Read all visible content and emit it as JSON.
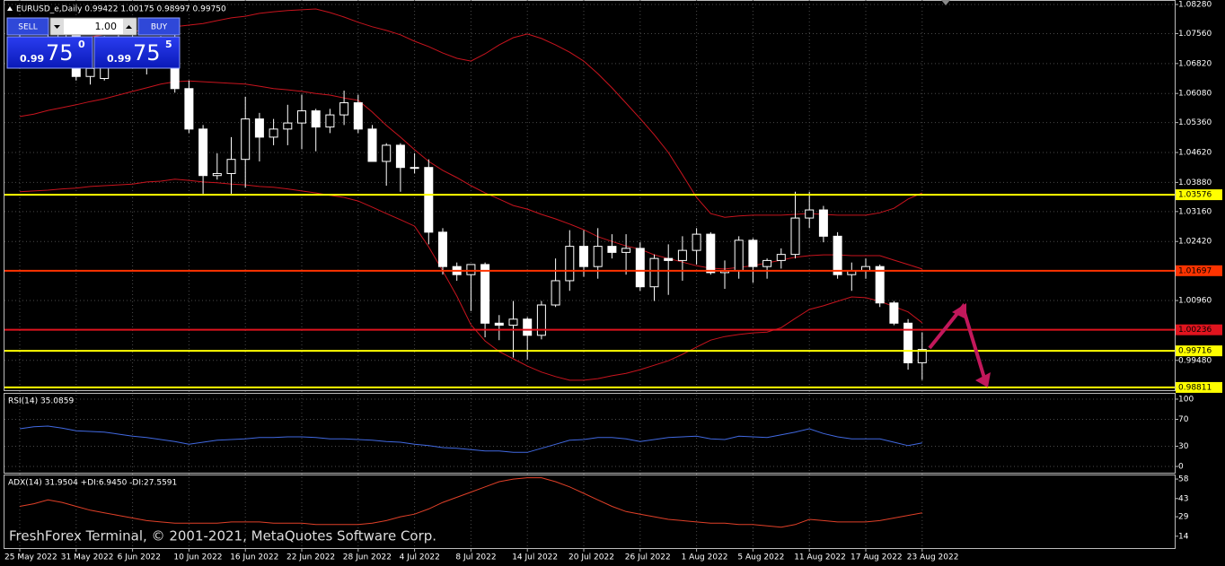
{
  "header": "EURUSD_e,Daily  0.99422 1.00175 0.98997 0.99750",
  "trade_panel": {
    "sell": "SELL",
    "lot": "1.00",
    "buy": "BUY",
    "bid": {
      "big": "0.99",
      "pips": "75",
      "frac": "0"
    },
    "ask": {
      "big": "0.99",
      "pips": "75",
      "frac": "5"
    }
  },
  "watermark": "FreshForex Terminal, © 2001-2021, MetaQuotes Software Corp.",
  "chart_data": [
    {
      "type": "candlestick",
      "categories": [
        "25 May 2022",
        null,
        null,
        null,
        "31 May 2022",
        null,
        null,
        null,
        "6 Jun 2022",
        null,
        null,
        null,
        "10 Jun 2022",
        null,
        null,
        null,
        "16 Jun 2022",
        null,
        null,
        null,
        "22 Jun 2022",
        null,
        null,
        null,
        "28 Jun 2022",
        null,
        null,
        null,
        "4 Jul 2022",
        null,
        null,
        null,
        "8 Jul 2022",
        null,
        null,
        null,
        "14 Jul 2022",
        null,
        null,
        null,
        "20 Jul 2022",
        null,
        null,
        null,
        "26 Jul 2022",
        null,
        null,
        null,
        "1 Aug 2022",
        null,
        null,
        null,
        "5 Aug 2022",
        null,
        null,
        null,
        "11 Aug 2022",
        null,
        null,
        null,
        "17 Aug 2022",
        null,
        null,
        null,
        "23 Aug 2022"
      ],
      "open": [
        1.0735,
        1.0725,
        1.073,
        1.0735,
        1.078,
        1.065,
        1.0645,
        1.0745,
        1.072,
        1.0695,
        1.0705,
        1.0715,
        1.062,
        1.052,
        1.0405,
        1.041,
        1.0445,
        1.0545,
        1.05,
        1.052,
        1.0535,
        1.0565,
        1.0525,
        1.0555,
        1.0585,
        1.052,
        1.044,
        1.048,
        1.0425,
        1.0425,
        1.0265,
        1.018,
        1.016,
        1.0185,
        1.004,
        1.0035,
        1.005,
        1.001,
        1.0085,
        1.0145,
        1.023,
        1.018,
        1.023,
        1.0215,
        1.0225,
        1.013,
        1.02,
        1.0195,
        1.022,
        1.026,
        1.0165,
        1.017,
        1.0245,
        1.018,
        1.0195,
        1.021,
        1.03,
        1.032,
        1.0255,
        1.016,
        1.017,
        1.018,
        1.009,
        1.004,
        0.99422
      ],
      "high": [
        1.0765,
        1.0745,
        1.0765,
        1.0785,
        1.0785,
        1.068,
        1.075,
        1.0765,
        1.0755,
        1.071,
        1.075,
        1.0775,
        1.064,
        1.053,
        1.046,
        1.05,
        1.06,
        1.056,
        1.0545,
        1.058,
        1.0605,
        1.057,
        1.057,
        1.0615,
        1.0605,
        1.053,
        1.0485,
        1.0485,
        1.046,
        1.0445,
        1.0275,
        1.019,
        1.0185,
        1.019,
        1.006,
        1.0095,
        1.0055,
        1.0095,
        1.02,
        1.027,
        1.027,
        1.0275,
        1.026,
        1.026,
        1.024,
        1.021,
        1.0235,
        1.0255,
        1.0275,
        1.0265,
        1.0195,
        1.0255,
        1.025,
        1.02,
        1.0225,
        1.0365,
        1.0365,
        1.033,
        1.0265,
        1.019,
        1.02,
        1.0185,
        1.0095,
        1.005,
        1.00175
      ],
      "low": [
        1.0695,
        1.069,
        1.071,
        1.072,
        1.064,
        1.063,
        1.064,
        1.0705,
        1.069,
        1.0655,
        1.068,
        1.061,
        1.051,
        1.036,
        1.0395,
        1.036,
        1.0375,
        1.044,
        1.048,
        1.048,
        1.047,
        1.0465,
        1.051,
        1.053,
        1.051,
        1.044,
        1.038,
        1.0365,
        1.041,
        1.0235,
        1.016,
        1.0145,
        1.007,
        1.0005,
        0.9998,
        0.9955,
        0.995,
        1.0,
        1.008,
        1.012,
        1.0155,
        1.015,
        1.02,
        1.016,
        1.012,
        1.0095,
        1.011,
        1.0145,
        1.0185,
        1.016,
        1.0125,
        1.015,
        1.014,
        1.015,
        1.0175,
        1.02,
        1.0275,
        1.024,
        1.015,
        1.012,
        1.015,
        1.008,
        1.0035,
        0.9925,
        0.98997
      ],
      "close": [
        1.0725,
        1.073,
        1.0735,
        1.078,
        1.065,
        1.067,
        1.0745,
        1.072,
        1.0695,
        1.0705,
        1.0715,
        1.062,
        1.052,
        1.0405,
        1.041,
        1.0445,
        1.0545,
        1.05,
        1.052,
        1.0535,
        1.0565,
        1.0525,
        1.0555,
        1.0585,
        1.052,
        1.044,
        1.048,
        1.0425,
        1.0425,
        1.0265,
        1.018,
        1.016,
        1.0185,
        1.004,
        1.0035,
        1.005,
        1.001,
        1.0085,
        1.0145,
        1.023,
        1.018,
        1.023,
        1.0215,
        1.0225,
        1.013,
        1.02,
        1.0195,
        1.022,
        1.026,
        1.0165,
        1.017,
        1.0245,
        1.018,
        1.0195,
        1.021,
        1.03,
        1.032,
        1.0255,
        1.016,
        1.017,
        1.018,
        1.009,
        1.004,
        0.9942,
        0.9975
      ],
      "bull_color": "#000000",
      "bear_color": "#ffffff",
      "wick_color": "#ffffff",
      "bands": [
        {
          "color": "#c8141e",
          "values": [
            1.0724,
            1.0728,
            1.0733,
            1.0737,
            1.0744,
            1.0748,
            1.0753,
            1.0757,
            1.0761,
            1.0766,
            1.0768,
            1.0773,
            1.0777,
            1.0781,
            1.0788,
            1.0795,
            1.0799,
            1.0806,
            1.081,
            1.0813,
            1.0815,
            1.0817,
            1.0808,
            1.0797,
            1.0784,
            1.0773,
            1.0764,
            1.0753,
            1.0737,
            1.0724,
            1.0708,
            1.0695,
            1.0688,
            1.0706,
            1.0728,
            1.0746,
            1.0755,
            1.0744,
            1.0728,
            1.071,
            1.0688,
            1.0657,
            1.0622,
            1.0584,
            1.0546,
            1.0506,
            1.0462,
            1.0407,
            1.0351,
            1.0311,
            1.0302,
            1.0305,
            1.0307,
            1.0307,
            1.0307,
            1.0309,
            1.0311,
            1.0309,
            1.0307,
            1.0307,
            1.0307,
            1.0313,
            1.0324,
            1.0347,
            1.0362
          ]
        },
        {
          "color": "#c8141e",
          "values": [
            1.0551,
            1.0557,
            1.0566,
            1.0573,
            1.058,
            1.0588,
            1.0595,
            1.0604,
            1.0613,
            1.0622,
            1.0631,
            1.0637,
            1.0639,
            1.0637,
            1.0635,
            1.0633,
            1.0631,
            1.0626,
            1.062,
            1.0617,
            1.0613,
            1.0608,
            1.0604,
            1.0597,
            1.0591,
            1.0562,
            1.0529,
            1.05,
            1.0469,
            1.044,
            1.0418,
            1.04,
            1.038,
            1.0362,
            1.0347,
            1.0331,
            1.0322,
            1.0309,
            1.0298,
            1.0285,
            1.0271,
            1.0254,
            1.0242,
            1.0231,
            1.0223,
            1.0209,
            1.02,
            1.0191,
            1.0182,
            1.0176,
            1.0174,
            1.0178,
            1.0182,
            1.0189,
            1.0196,
            1.0203,
            1.0207,
            1.0209,
            1.0209,
            1.0207,
            1.0207,
            1.0207,
            1.0196,
            1.0185,
            1.0174
          ]
        },
        {
          "color": "#c8141e",
          "values": [
            1.0365,
            1.0367,
            1.0369,
            1.0372,
            1.0374,
            1.0378,
            1.038,
            1.0382,
            1.0384,
            1.0389,
            1.0391,
            1.0396,
            1.0393,
            1.0389,
            1.0387,
            1.0384,
            1.0382,
            1.0378,
            1.0376,
            1.0372,
            1.0367,
            1.0362,
            1.0356,
            1.0351,
            1.0342,
            1.0327,
            1.0311,
            1.0296,
            1.028,
            1.0229,
            1.0169,
            1.0107,
            1.0036,
            0.9996,
            0.997,
            0.9952,
            0.9934,
            0.9919,
            0.9908,
            0.9899,
            0.9899,
            0.9903,
            0.991,
            0.9916,
            0.9925,
            0.9936,
            0.9947,
            0.9963,
            0.9981,
            0.9998,
            1.0007,
            1.0012,
            1.0016,
            1.0018,
            1.0029,
            1.0052,
            1.0074,
            1.0083,
            1.0094,
            1.0105,
            1.0103,
            1.0094,
            1.0081,
            1.0068,
            1.0041
          ]
        }
      ],
      "levels": [
        {
          "value": 1.03576,
          "label": "1.03576",
          "color": "#ffff00"
        },
        {
          "value": 1.01697,
          "label": "1.01697",
          "color": "#ff3300"
        },
        {
          "value": 1.00236,
          "label": "1.00236",
          "color": "#e0141e"
        },
        {
          "value": 0.99716,
          "label": "0.99716",
          "color": "#ffff00"
        },
        {
          "value": 0.98811,
          "label": "0.98811",
          "color": "#ffff00"
        }
      ],
      "ylim": [
        0.98743,
        1.08391
      ],
      "yticks": [
        {
          "value": 1.0828,
          "label": "1.08280"
        },
        {
          "value": 1.0756,
          "label": "1.07560"
        },
        {
          "value": 1.0682,
          "label": "1.06820"
        },
        {
          "value": 1.0608,
          "label": "1.06080"
        },
        {
          "value": 1.0536,
          "label": "1.05360"
        },
        {
          "value": 1.0462,
          "label": "1.04620"
        },
        {
          "value": 1.0388,
          "label": "1.03880"
        },
        {
          "value": 1.0316,
          "label": "1.03160"
        },
        {
          "value": 1.0242,
          "label": "1.02420"
        },
        {
          "value": 1.0096,
          "label": "1.00960"
        },
        {
          "value": 0.9948,
          "label": "0.99480"
        }
      ],
      "grid": true
    },
    {
      "type": "line",
      "title": "RSI(14) 35.0859",
      "color": "#4169e1",
      "values": [
        56,
        59,
        60,
        57,
        53,
        52,
        51,
        48,
        45,
        43,
        40,
        37,
        33,
        36,
        39,
        40,
        41,
        43,
        43,
        44,
        44,
        43,
        41,
        41,
        40,
        39,
        37,
        36,
        33,
        31,
        28,
        27,
        25,
        23,
        23,
        21,
        21,
        27,
        33,
        39,
        40,
        43,
        43,
        41,
        37,
        40,
        43,
        44,
        45,
        41,
        40,
        45,
        44,
        43,
        47,
        51,
        56,
        49,
        44,
        41,
        41,
        41,
        36,
        31,
        35.0859
      ],
      "ylim": [
        -9.3,
        109.3
      ],
      "yticks": [
        100,
        70,
        30,
        0
      ],
      "grid": true
    },
    {
      "type": "line",
      "title": "ADX(14) 31.9504 +DI:6.9450 -DI:27.5591",
      "color": "#e04028",
      "values": [
        37,
        39,
        42,
        40,
        37,
        34,
        32,
        30,
        28,
        26,
        25,
        24,
        24,
        24,
        24,
        25,
        25,
        25,
        24,
        24,
        24,
        23,
        23,
        23,
        23,
        24,
        26,
        29,
        31,
        35,
        40,
        44,
        48,
        52,
        56,
        58,
        59,
        59,
        56,
        52,
        47,
        42,
        37,
        33,
        31,
        29,
        27,
        26,
        25,
        24,
        24,
        23,
        23,
        22,
        21,
        23,
        27,
        26,
        25,
        25,
        25,
        26,
        28,
        30,
        31.9504
      ],
      "ylim": [
        4.9,
        61.5
      ],
      "yticks": [
        58,
        43,
        29,
        14
      ],
      "grid": false
    }
  ]
}
